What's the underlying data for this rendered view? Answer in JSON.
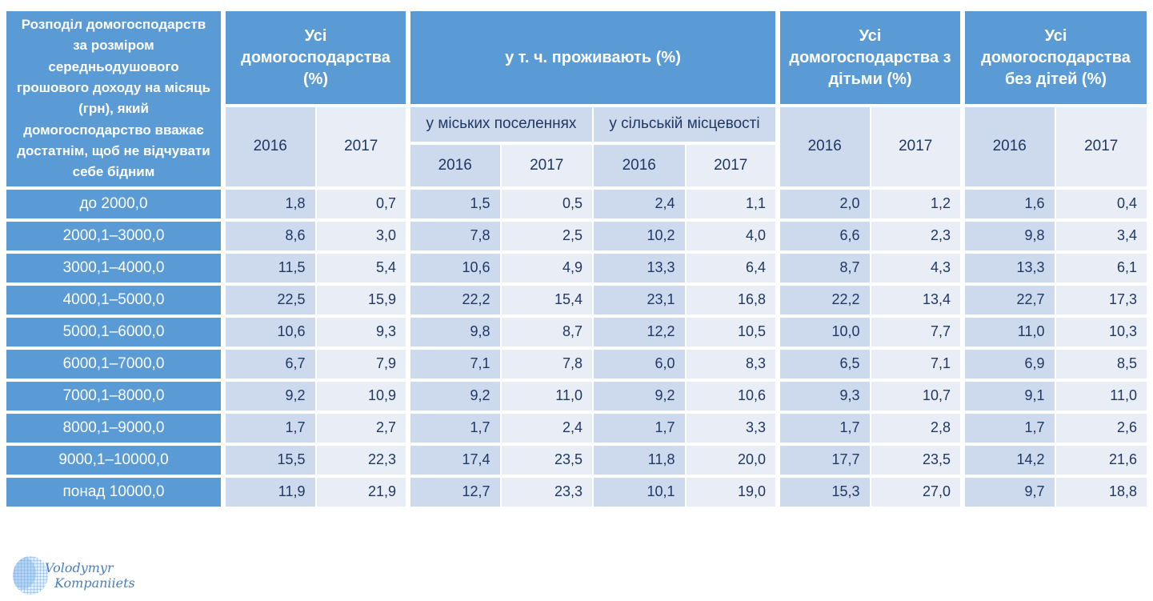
{
  "colors": {
    "header_blue": "#5B9BD5",
    "band_2016": "#CDD9EC",
    "band_2017": "#E9EDF5",
    "text_navy": "#1F3864",
    "text_white": "#FFFFFF",
    "watermark_blue": "#4A7EBB"
  },
  "table": {
    "corner_header": "Розподіл домогосподарств за розміром середньодушового грошового доходу на місяць (грн), який домогосподарство вважає достатнім, щоб не відчувати себе бідним",
    "group_all": "Усі домогосподарства (%)",
    "group_residence": "у т. ч. проживають (%)",
    "sub_urban": "у міських поселеннях",
    "sub_rural": "у сільській місцевості",
    "group_with_children": "Усі домогосподарства з дітьми (%)",
    "group_without_children": "Усі домогосподарства без дітей (%)",
    "year_2016": "2016",
    "year_2017": "2017",
    "rows": [
      {
        "label": "до 2000,0",
        "values": [
          "1,8",
          "0,7",
          "1,5",
          "0,5",
          "2,4",
          "1,1",
          "2,0",
          "1,2",
          "1,6",
          "0,4"
        ]
      },
      {
        "label": "2000,1–3000,0",
        "values": [
          "8,6",
          "3,0",
          "7,8",
          "2,5",
          "10,2",
          "4,0",
          "6,6",
          "2,3",
          "9,8",
          "3,4"
        ]
      },
      {
        "label": "3000,1–4000,0",
        "values": [
          "11,5",
          "5,4",
          "10,6",
          "4,9",
          "13,3",
          "6,4",
          "8,7",
          "4,3",
          "13,3",
          "6,1"
        ]
      },
      {
        "label": "4000,1–5000,0",
        "values": [
          "22,5",
          "15,9",
          "22,2",
          "15,4",
          "23,1",
          "16,8",
          "22,2",
          "13,4",
          "22,7",
          "17,3"
        ]
      },
      {
        "label": "5000,1–6000,0",
        "values": [
          "10,6",
          "9,3",
          "9,8",
          "8,7",
          "12,2",
          "10,5",
          "10,0",
          "7,7",
          "11,0",
          "10,3"
        ]
      },
      {
        "label": "6000,1–7000,0",
        "values": [
          "6,7",
          "7,9",
          "7,1",
          "7,8",
          "6,0",
          "8,3",
          "6,5",
          "7,1",
          "6,9",
          "8,5"
        ]
      },
      {
        "label": "7000,1–8000,0",
        "values": [
          "9,2",
          "10,9",
          "9,2",
          "11,0",
          "9,2",
          "10,6",
          "9,3",
          "10,7",
          "9,1",
          "11,0"
        ]
      },
      {
        "label": "8000,1–9000,0",
        "values": [
          "1,7",
          "2,7",
          "1,7",
          "2,4",
          "1,7",
          "3,3",
          "1,7",
          "2,8",
          "1,7",
          "2,6"
        ]
      },
      {
        "label": "9000,1–10000,0",
        "values": [
          "15,5",
          "22,3",
          "17,4",
          "23,5",
          "11,8",
          "20,0",
          "17,7",
          "23,5",
          "14,2",
          "21,6"
        ]
      },
      {
        "label": "понад 10000,0",
        "values": [
          "11,9",
          "21,9",
          "12,7",
          "23,3",
          "10,1",
          "19,0",
          "15,3",
          "27,0",
          "9,7",
          "18,8"
        ]
      }
    ]
  },
  "watermark": {
    "line1": "Volodymyr",
    "line2": "Kompaniiets"
  },
  "chart_data": {
    "type": "table",
    "title": "Розподіл домогосподарств за розміром середньодушового грошового доходу на місяць (грн), який домогосподарство вважає достатнім, щоб не відчувати себе бідним",
    "column_groups": [
      {
        "label": "Усі домогосподарства (%)",
        "years": [
          "2016",
          "2017"
        ]
      },
      {
        "label": "у т. ч. проживають (%) — у міських поселеннях",
        "years": [
          "2016",
          "2017"
        ]
      },
      {
        "label": "у т. ч. проживають (%) — у сільській місцевості",
        "years": [
          "2016",
          "2017"
        ]
      },
      {
        "label": "Усі домогосподарства з дітьми (%)",
        "years": [
          "2016",
          "2017"
        ]
      },
      {
        "label": "Усі домогосподарства без дітей (%)",
        "years": [
          "2016",
          "2017"
        ]
      }
    ],
    "row_labels": [
      "до 2000,0",
      "2000,1–3000,0",
      "3000,1–4000,0",
      "4000,1–5000,0",
      "5000,1–6000,0",
      "6000,1–7000,0",
      "7000,1–8000,0",
      "8000,1–9000,0",
      "9000,1–10000,0",
      "понад 10000,0"
    ],
    "values": [
      [
        1.8,
        0.7,
        1.5,
        0.5,
        2.4,
        1.1,
        2.0,
        1.2,
        1.6,
        0.4
      ],
      [
        8.6,
        3.0,
        7.8,
        2.5,
        10.2,
        4.0,
        6.6,
        2.3,
        9.8,
        3.4
      ],
      [
        11.5,
        5.4,
        10.6,
        4.9,
        13.3,
        6.4,
        8.7,
        4.3,
        13.3,
        6.1
      ],
      [
        22.5,
        15.9,
        22.2,
        15.4,
        23.1,
        16.8,
        22.2,
        13.4,
        22.7,
        17.3
      ],
      [
        10.6,
        9.3,
        9.8,
        8.7,
        12.2,
        10.5,
        10.0,
        7.7,
        11.0,
        10.3
      ],
      [
        6.7,
        7.9,
        7.1,
        7.8,
        6.0,
        8.3,
        6.5,
        7.1,
        6.9,
        8.5
      ],
      [
        9.2,
        10.9,
        9.2,
        11.0,
        9.2,
        10.6,
        9.3,
        10.7,
        9.1,
        11.0
      ],
      [
        1.7,
        2.7,
        1.7,
        2.4,
        1.7,
        3.3,
        1.7,
        2.8,
        1.7,
        2.6
      ],
      [
        15.5,
        22.3,
        17.4,
        23.5,
        11.8,
        20.0,
        17.7,
        23.5,
        14.2,
        21.6
      ],
      [
        11.9,
        21.9,
        12.7,
        23.3,
        10.1,
        19.0,
        15.3,
        27.0,
        9.7,
        18.8
      ]
    ]
  }
}
